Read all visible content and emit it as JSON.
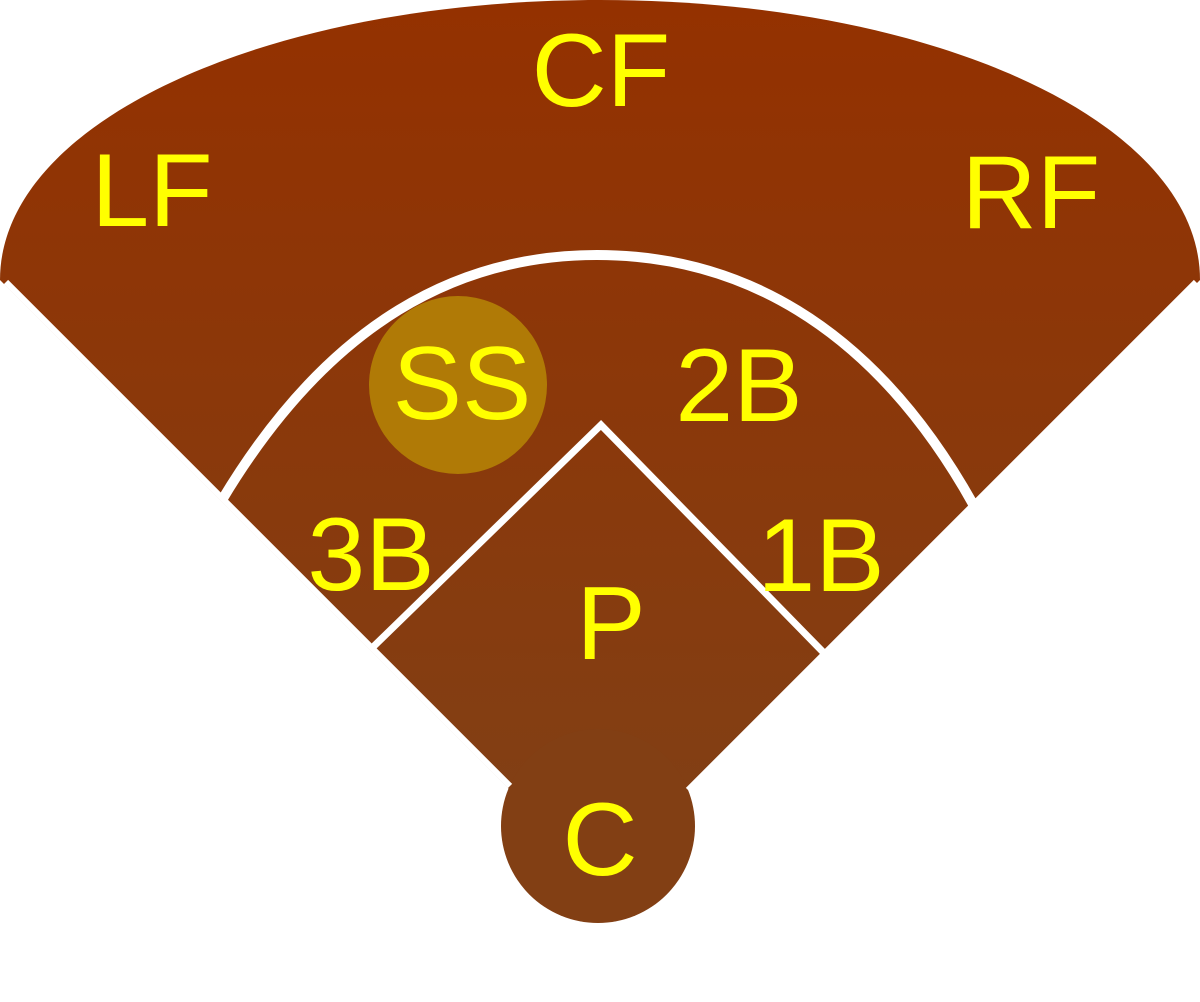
{
  "colors": {
    "field_top": "#943100",
    "field_bottom": "#823F14",
    "label": "#FFFF00",
    "highlight": "#B07A06",
    "lines": "#FFFFFF",
    "background": "#FFFFFF"
  },
  "highlighted_position": "SS",
  "positions": {
    "cf": "CF",
    "lf": "LF",
    "rf": "RF",
    "ss": "SS",
    "second_base": "2B",
    "third_base": "3B",
    "first_base": "1B",
    "pitcher": "P",
    "catcher": "C"
  }
}
